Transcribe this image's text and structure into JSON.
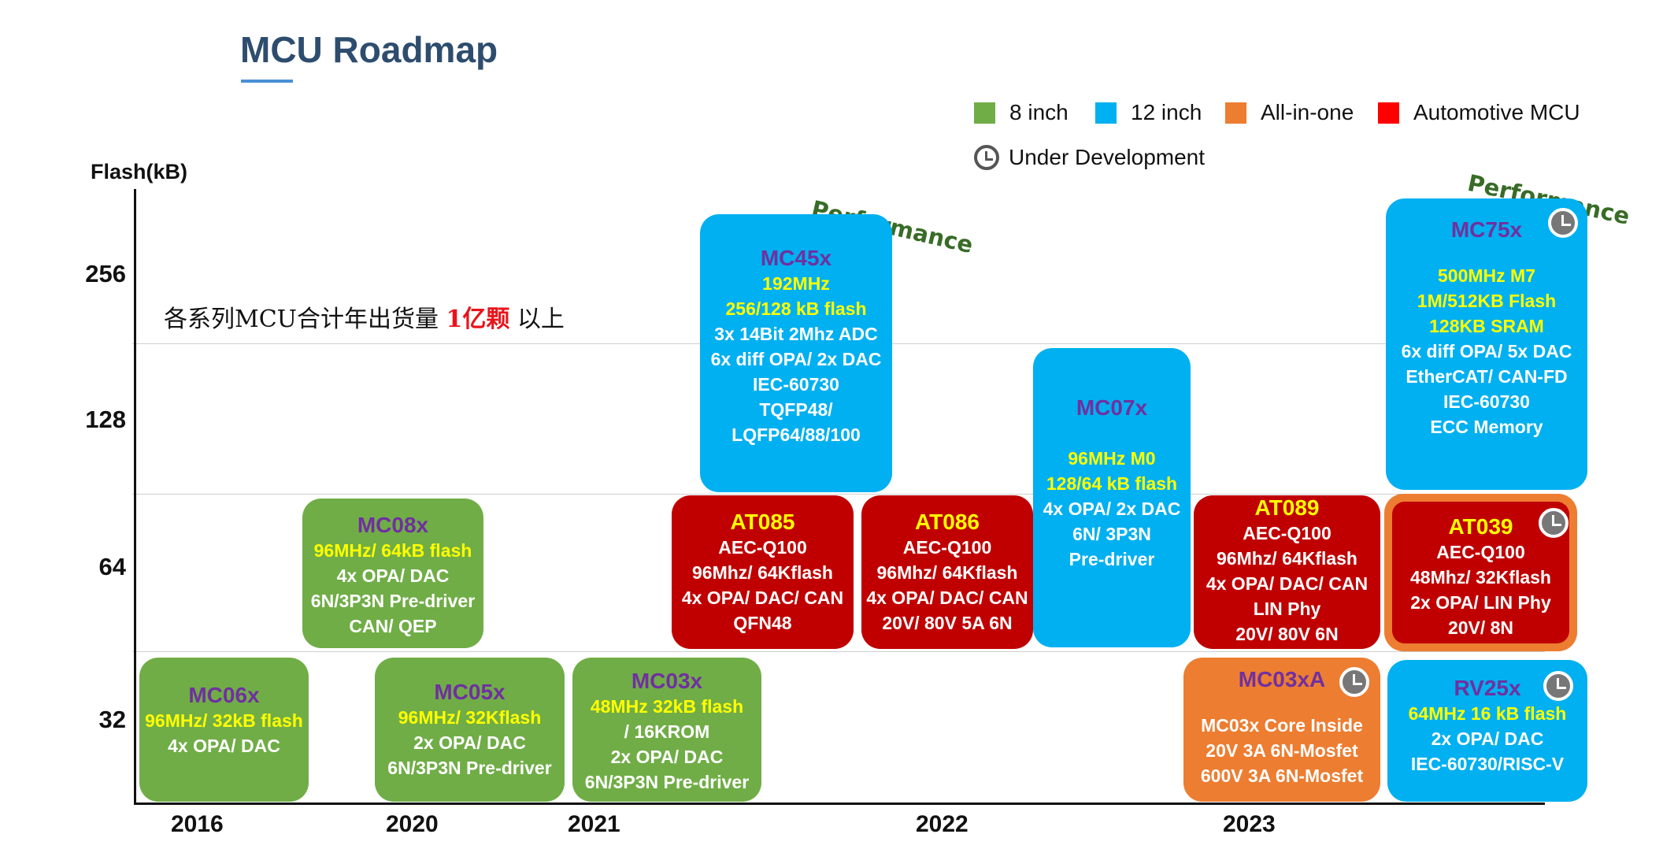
{
  "title": "MCU Roadmap",
  "legend": {
    "green": {
      "label": "8 inch",
      "color": "#70ad47"
    },
    "blue": {
      "label": "12 inch",
      "color": "#00b0f0"
    },
    "orange": {
      "label": "All-in-one",
      "color": "#ed7d31"
    },
    "red": {
      "label": "Automotive MCU",
      "color": "#ff0000"
    },
    "dev": {
      "label": "Under Development",
      "icon": "clock-icon"
    }
  },
  "axis": {
    "y_title": "Flash(kB)",
    "y_ticks": [
      "256",
      "128",
      "64",
      "32"
    ],
    "x_ticks": [
      "2016",
      "2020",
      "2021",
      "2022",
      "2023"
    ]
  },
  "shipment": {
    "prefix": "各系列MCU合计年出货量 ",
    "highlight": "1亿颗",
    "suffix": " 以上"
  },
  "performance_label": "Performance",
  "boxes": {
    "mc06x": {
      "name": "MC06x",
      "lines": [
        "96MHz/ 32kB flash",
        "4x OPA/ DAC"
      ]
    },
    "mc05x": {
      "name": "MC05x",
      "lines": [
        "96MHz/ 32Kflash",
        "2x OPA/ DAC",
        "6N/3P3N Pre-driver"
      ]
    },
    "mc03x": {
      "name": "MC03x",
      "lines": [
        "48MHz 32kB flash",
        "/ 16KROM",
        "2x OPA/ DAC",
        "6N/3P3N Pre-driver"
      ]
    },
    "mc08x": {
      "name": "MC08x",
      "lines": [
        "96MHz/ 64kB flash",
        "4x OPA/ DAC",
        "6N/3P3N Pre-driver",
        "CAN/ QEP"
      ]
    },
    "mc45x": {
      "name": "MC45x",
      "lines": [
        "192MHz",
        "256/128 kB flash",
        "3x 14Bit 2Mhz ADC",
        "6x diff OPA/ 2x DAC",
        "IEC-60730",
        "TQFP48/",
        "LQFP64/88/100"
      ]
    },
    "at085": {
      "name": "AT085",
      "lines": [
        "AEC-Q100",
        "96Mhz/ 64Kflash",
        "4x OPA/ DAC/ CAN",
        "QFN48"
      ]
    },
    "at086": {
      "name": "AT086",
      "lines": [
        "AEC-Q100",
        "96Mhz/ 64Kflash",
        "4x OPA/ DAC/ CAN",
        "20V/ 80V 5A 6N"
      ]
    },
    "mc07x": {
      "name": "MC07x",
      "lines": [
        "96MHz M0",
        "128/64 kB flash",
        "4x OPA/ 2x DAC",
        "6N/ 3P3N",
        "Pre-driver"
      ]
    },
    "at089": {
      "name": "AT089",
      "lines": [
        "AEC-Q100",
        "96Mhz/ 64Kflash",
        "4x OPA/ DAC/ CAN",
        "LIN Phy",
        "20V/ 80V 6N"
      ]
    },
    "at039": {
      "name": "AT039",
      "lines": [
        "AEC-Q100",
        "48Mhz/ 32Kflash",
        "2x OPA/ LIN Phy",
        "20V/ 8N"
      ]
    },
    "mc03xa": {
      "name": "MC03xA",
      "lines": [
        "MC03x Core Inside",
        "20V 3A 6N-Mosfet",
        "600V 3A 6N-Mosfet"
      ]
    },
    "rv25x": {
      "name": "RV25x",
      "lines": [
        "64MHz 16 kB flash",
        "2x OPA/ DAC",
        "IEC-60730/RISC-V"
      ]
    },
    "mc75x": {
      "name": "MC75x",
      "lines": [
        "500MHz M7",
        "1M/512KB Flash",
        "128KB SRAM",
        "6x diff OPA/ 5x DAC",
        "EtherCAT/ CAN-FD",
        "IEC-60730",
        "ECC Memory"
      ]
    }
  }
}
